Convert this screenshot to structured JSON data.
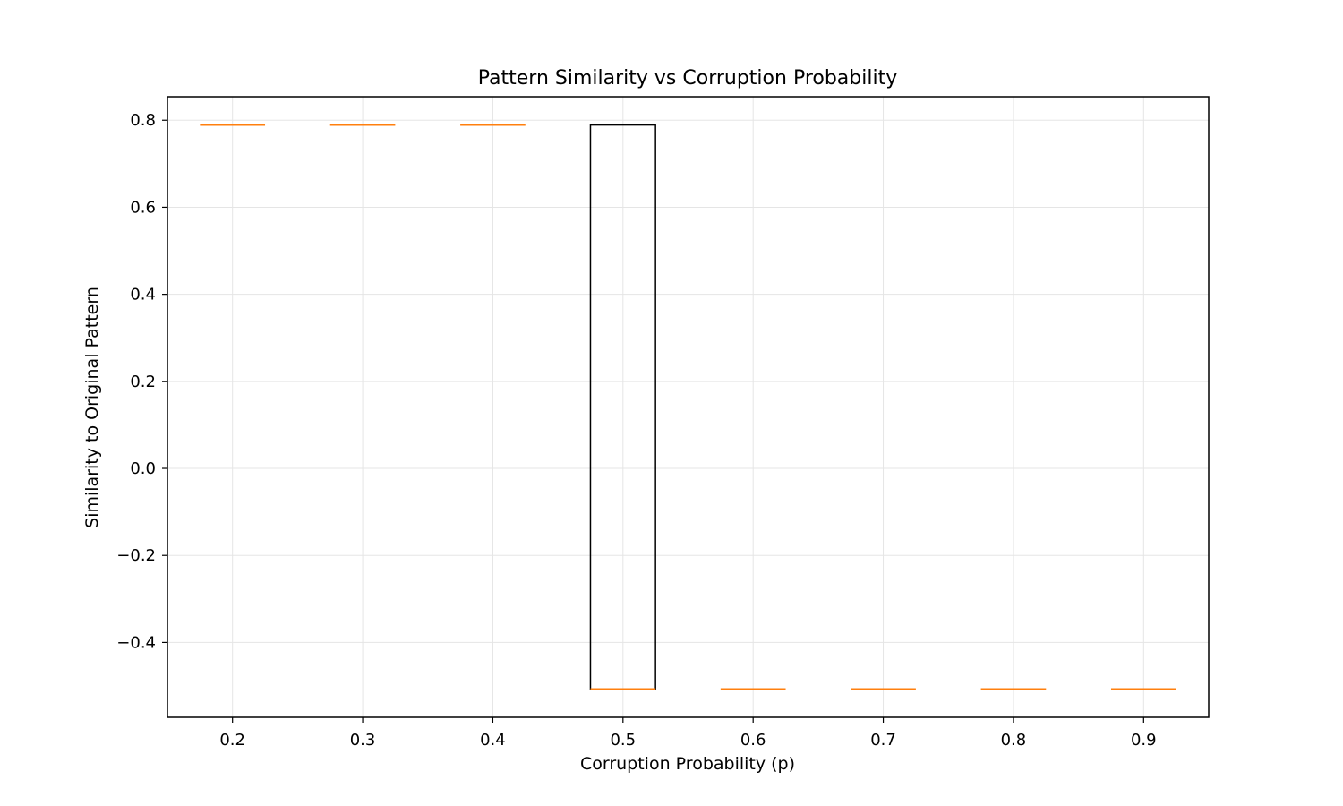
{
  "chart_data": {
    "type": "box",
    "title": "Pattern Similarity vs Corruption Probability",
    "xlabel": "Corruption Probability (p)",
    "ylabel": "Similarity to Original Pattern",
    "categories": [
      "0.2",
      "0.3",
      "0.4",
      "0.5",
      "0.6",
      "0.7",
      "0.8",
      "0.9"
    ],
    "boxes": [
      {
        "category": "0.2",
        "min": 0.789,
        "q1": 0.789,
        "median": 0.789,
        "q3": 0.789,
        "max": 0.789
      },
      {
        "category": "0.3",
        "min": 0.789,
        "q1": 0.789,
        "median": 0.789,
        "q3": 0.789,
        "max": 0.789
      },
      {
        "category": "0.4",
        "min": 0.789,
        "q1": 0.789,
        "median": 0.789,
        "q3": 0.789,
        "max": 0.789
      },
      {
        "category": "0.5",
        "min": -0.507,
        "q1": -0.507,
        "median": -0.507,
        "q3": 0.789,
        "max": 0.789
      },
      {
        "category": "0.6",
        "min": -0.507,
        "q1": -0.507,
        "median": -0.507,
        "q3": -0.507,
        "max": -0.507
      },
      {
        "category": "0.7",
        "min": -0.507,
        "q1": -0.507,
        "median": -0.507,
        "q3": -0.507,
        "max": -0.507
      },
      {
        "category": "0.8",
        "min": -0.507,
        "q1": -0.507,
        "median": -0.507,
        "q3": -0.507,
        "max": -0.507
      },
      {
        "category": "0.9",
        "min": -0.507,
        "q1": -0.507,
        "median": -0.507,
        "q3": -0.507,
        "max": -0.507
      }
    ],
    "yticks": [
      -0.4,
      -0.2,
      0.0,
      0.2,
      0.4,
      0.6,
      0.8
    ],
    "ytick_labels": [
      "−0.4",
      "−0.2",
      "0.0",
      "0.2",
      "0.4",
      "0.6",
      "0.8"
    ],
    "ylim": [
      -0.572,
      0.854
    ],
    "grid": true,
    "colors": {
      "box": "#000000",
      "median": "#ff7f0e",
      "grid": "#e5e5e5"
    }
  }
}
